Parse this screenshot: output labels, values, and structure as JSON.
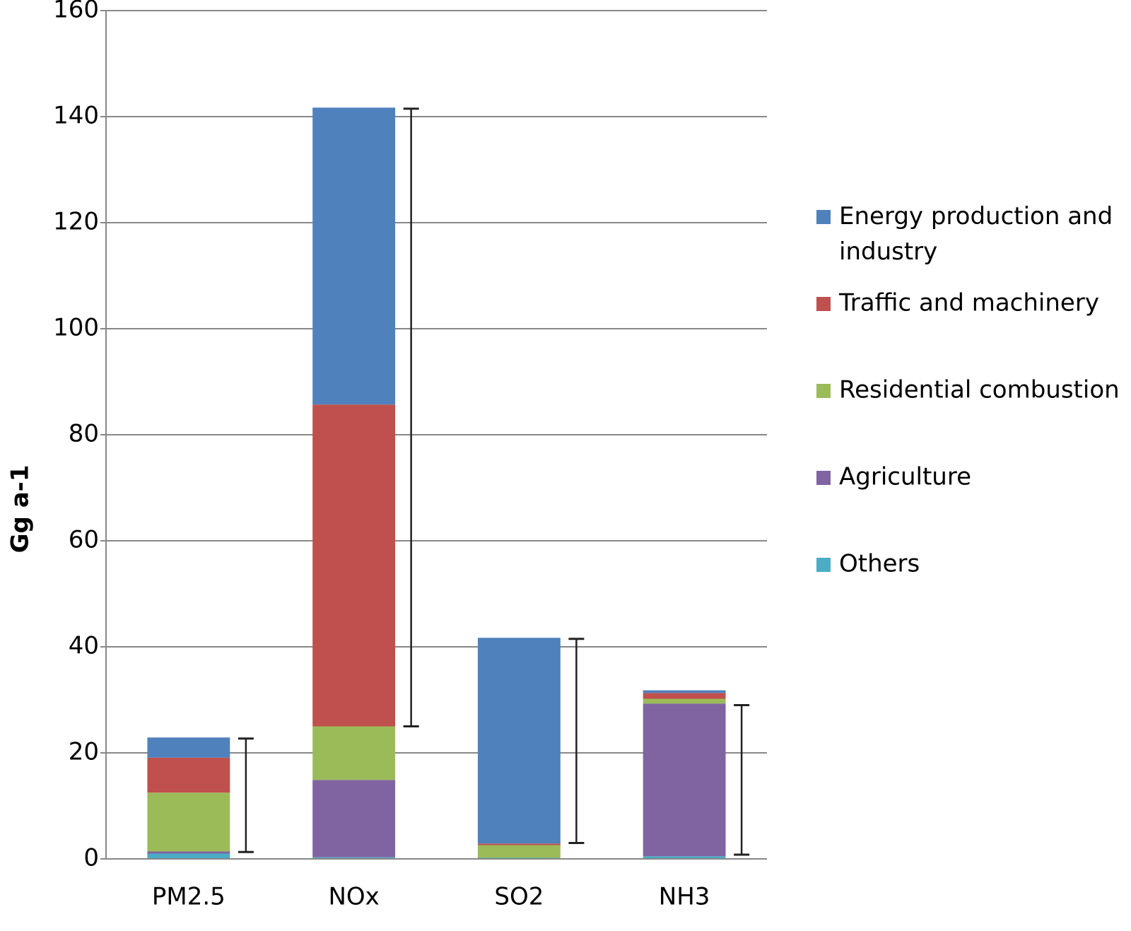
{
  "chart_data": {
    "type": "stacked_bar",
    "y_label": "Gg a-1",
    "categories": [
      "PM2.5",
      "NOx",
      "SO2",
      "NH3"
    ],
    "series": [
      {
        "name": "Energy production and industry",
        "color": "#4f81bd",
        "values": [
          3.8,
          56.0,
          38.8,
          0.5
        ]
      },
      {
        "name": "Traffic and machinery",
        "color": "#c0504d",
        "values": [
          6.6,
          60.7,
          0.3,
          1.1
        ]
      },
      {
        "name": "Residential combustion",
        "color": "#9bbb59",
        "values": [
          11.1,
          10.1,
          2.4,
          0.9
        ]
      },
      {
        "name": "Agriculture",
        "color": "#8064a2",
        "values": [
          0.4,
          14.6,
          0,
          28.8
        ]
      },
      {
        "name": "Others",
        "color": "#4bacc6",
        "values": [
          1.0,
          0.3,
          0.2,
          0.5
        ]
      }
    ],
    "error_low": [
      1.3,
      25,
      3.0,
      0.8
    ],
    "error_high": [
      22.7,
      141.5,
      41.5,
      29.0
    ],
    "ylim": [
      0,
      160
    ],
    "yticks": [
      0,
      20,
      40,
      60,
      80,
      100,
      120,
      140,
      160
    ],
    "grid": true,
    "legend": "right"
  }
}
